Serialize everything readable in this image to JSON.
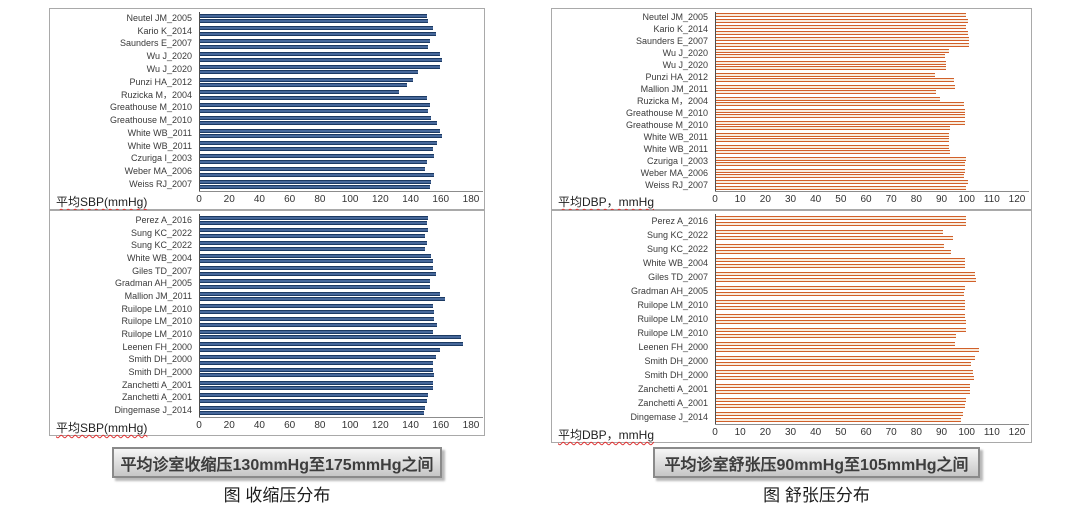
{
  "figure": {
    "left_column": {
      "button_label": "平均诊室收缩压130mmHg至175mmHg之间",
      "caption": "图 收缩压分布"
    },
    "right_column": {
      "button_label": "平均诊室舒张压90mmHg至105mmHg之间",
      "caption": "图 舒张压分布"
    }
  },
  "colors": {
    "blue_edge": "#1C3A63",
    "blue_fill": "#47689A",
    "orange_edge": "#D1602A",
    "orange_fill": "#F9ECDD",
    "axis_line": "#8C8C8C",
    "callout_border": "#8A8A8A"
  },
  "chart_data": [
    {
      "id": "sbp_top",
      "type": "bar",
      "orientation": "horizontal",
      "palette": "blue",
      "xlabel": "平均SBP(mmHg)",
      "xlim": [
        0,
        180
      ],
      "xticks": [
        0,
        20,
        40,
        60,
        80,
        100,
        120,
        140,
        160,
        180
      ],
      "categories": [
        "Neutel JM_2005",
        "Kario K_2014",
        "Saunders E_2007",
        "Wu J_2020",
        "Wu J_2020",
        "Punzi HA_2012",
        "Ruzicka M，2004",
        "Greathouse M_2010",
        "Greathouse M_2010",
        "White WB_2011",
        "White WB_2011",
        "Czuriga I_2003",
        "Weber MA_2006",
        "Weiss RJ_2007"
      ],
      "series": [
        {
          "name": "bar1",
          "values": [
            150,
            154,
            152,
            159,
            159,
            141,
            132,
            152,
            153,
            159,
            157,
            155,
            149,
            153
          ]
        },
        {
          "name": "bar2",
          "values": [
            151,
            156,
            151,
            160,
            144,
            137,
            150,
            151,
            157,
            160,
            154,
            150,
            155,
            152
          ]
        }
      ]
    },
    {
      "id": "sbp_bottom",
      "type": "bar",
      "orientation": "horizontal",
      "palette": "blue",
      "xlabel": "平均SBP(mmHg)",
      "xlim": [
        0,
        180
      ],
      "xticks": [
        0,
        20,
        40,
        60,
        80,
        100,
        120,
        140,
        160,
        180
      ],
      "categories": [
        "Perez A_2016",
        "Sung KC_2022",
        "Sung KC_2022",
        "White WB_2004",
        "Giles TD_2007",
        "Gradman AH_2005",
        "Mallion JM_2011",
        "Ruilope LM_2010",
        "Ruilope LM_2010",
        "Ruilope LM_2010",
        "Leenen FH_2000",
        "Smith DH_2000",
        "Smith DH_2000",
        "Zanchetti A_2001",
        "Zanchetti A_2001",
        "Dingemase J_2014"
      ],
      "series": [
        {
          "name": "bar1",
          "values": [
            151,
            151,
            150,
            153,
            154,
            152,
            159,
            154,
            155,
            154,
            174,
            156,
            154,
            154,
            151,
            149
          ]
        },
        {
          "name": "bar2",
          "values": [
            150,
            149,
            149,
            154,
            156,
            152,
            162,
            155,
            157,
            173,
            159,
            154,
            155,
            154,
            150,
            148
          ]
        }
      ]
    },
    {
      "id": "dbp_top",
      "type": "bar",
      "orientation": "horizontal",
      "palette": "orange",
      "xlabel": "平均DBP，mmHg",
      "xlim": [
        0,
        120
      ],
      "xticks": [
        0,
        10,
        20,
        30,
        40,
        50,
        60,
        70,
        80,
        90,
        100,
        110,
        120
      ],
      "categories": [
        "Neutel JM_2005",
        "Kario K_2014",
        "Saunders E_2007",
        "Wu J_2020",
        "Wu J_2020",
        "Punzi HA_2012",
        "Mallion JM_2011",
        "Ruzicka M，2004",
        "Greathouse M_2010",
        "Greathouse M_2010",
        "White WB_2011",
        "White WB_2011",
        "Czuriga I_2003",
        "Weber MA_2006",
        "Weiss RJ_2007"
      ],
      "series": [
        {
          "name": "bar1",
          "values": [
            99.5,
            99.5,
            100.5,
            92.5,
            91.5,
            87,
            95,
            89,
            99,
            99,
            92.5,
            92.5,
            99.5,
            99,
            100
          ]
        },
        {
          "name": "bar2",
          "values": [
            100,
            100,
            100.5,
            91,
            91.5,
            94.5,
            87.5,
            98.5,
            99,
            93,
            92.5,
            93,
            99,
            98.5,
            99.5
          ]
        }
      ]
    },
    {
      "id": "dbp_bottom",
      "type": "bar",
      "orientation": "horizontal",
      "palette": "orange",
      "xlabel": "平均DBP，mmHg",
      "xlim": [
        0,
        120
      ],
      "xticks": [
        0,
        10,
        20,
        30,
        40,
        50,
        60,
        70,
        80,
        90,
        100,
        110,
        120
      ],
      "categories": [
        "Perez A_2016",
        "Sung KC_2022",
        "Sung KC_2022",
        "White WB_2004",
        "Giles TD_2007",
        "Gradman AH_2005",
        "Ruilope LM_2010",
        "Ruilope LM_2010",
        "Ruilope LM_2010",
        "Leenen FH_2000",
        "Smith DH_2000",
        "Smith DH_2000",
        "Zanchetti A_2001",
        "Zanchetti A_2001",
        "Dingemase J_2014"
      ],
      "series": [
        {
          "name": "bar1",
          "values": [
            99.5,
            90,
            90.5,
            99,
            103,
            99,
            99,
            99,
            99.5,
            95,
            103,
            102,
            101,
            99.5,
            98
          ]
        },
        {
          "name": "bar2",
          "values": [
            99.5,
            94,
            93.5,
            99,
            103.5,
            98.5,
            99,
            99.5,
            95.5,
            104.5,
            101.5,
            102.5,
            101,
            99,
            97.5
          ]
        }
      ]
    }
  ]
}
